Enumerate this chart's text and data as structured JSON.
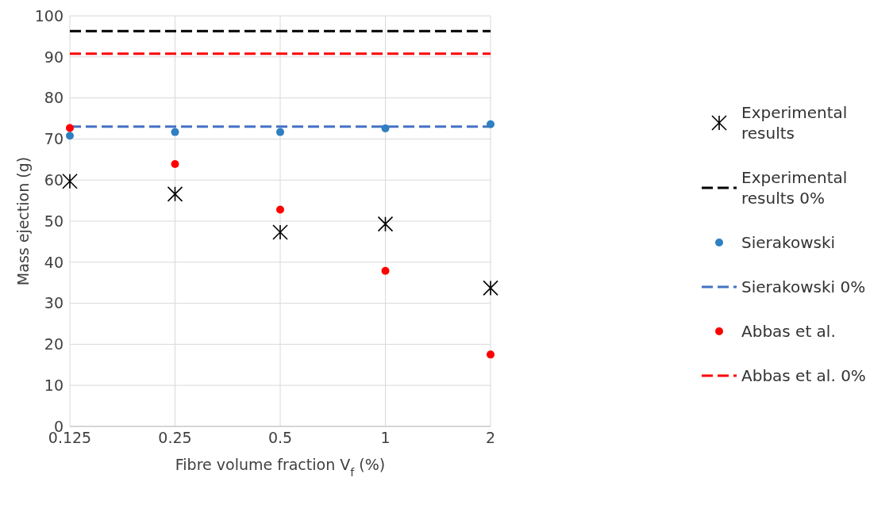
{
  "chart_data": {
    "type": "scatter",
    "xlabel": "Fibre volume fraction V$_{f}$ (%)",
    "ylabel": "Mass ejection (g)",
    "categories": [
      "0.125",
      "0.25",
      "0.5",
      "1",
      "2"
    ],
    "ylim": [
      0,
      100
    ],
    "yticks": [
      0,
      10,
      20,
      30,
      40,
      50,
      60,
      70,
      80,
      90,
      100
    ],
    "grid": true,
    "legend": "right",
    "series": [
      {
        "name": "Experimental results",
        "marker": "cross",
        "color": "#000000",
        "values": [
          59.7,
          56.6,
          47.3,
          49.3,
          33.7
        ]
      },
      {
        "name": "Experimental results 0%",
        "type": "line",
        "line_style": "dashed",
        "marker": "none",
        "color": "#000000",
        "values": [
          96.3,
          96.3,
          96.3,
          96.3,
          96.3
        ]
      },
      {
        "name": "Sierakowski",
        "marker": "circle",
        "color": "#2f7fc1",
        "values": [
          70.8,
          71.7,
          71.7,
          72.6,
          73.6
        ]
      },
      {
        "name": "Sierakowski 0%",
        "type": "line",
        "line_style": "dashed",
        "marker": "none",
        "color": "#4472c4",
        "values": [
          73,
          73,
          73,
          73,
          73
        ]
      },
      {
        "name": "Abbas et al.",
        "marker": "circle",
        "color": "#ff0000",
        "values": [
          72.7,
          63.9,
          52.8,
          37.9,
          17.5
        ]
      },
      {
        "name": "Abbas et al. 0%",
        "type": "line",
        "line_style": "dashed",
        "marker": "none",
        "color": "#ff0000",
        "values": [
          90.8,
          90.8,
          90.8,
          90.8,
          90.8
        ]
      }
    ]
  }
}
